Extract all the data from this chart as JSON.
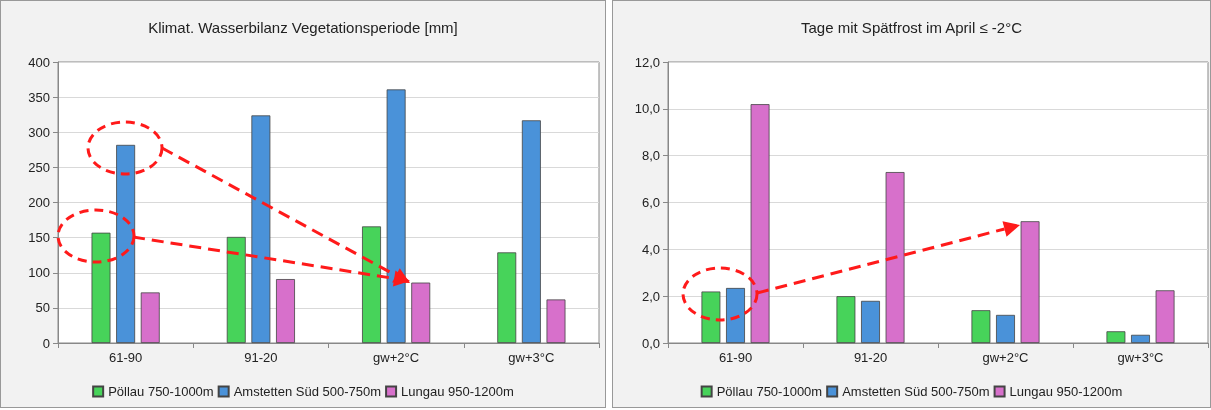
{
  "chart_data": [
    {
      "type": "bar",
      "title": "Klimat. Wasserbilanz Vegetationsperiode [mm]",
      "categories": [
        "61-90",
        "91-20",
        "gw+2°C",
        "gw+3°C"
      ],
      "series": [
        {
          "name": "Pöllau 750-1000m",
          "color": "#47d35a",
          "values": [
            157,
            151,
            166,
            129
          ]
        },
        {
          "name": "Amstetten Süd 500-750m",
          "color": "#4a92d9",
          "values": [
            282,
            324,
            361,
            317
          ]
        },
        {
          "name": "Lungau 950-1200m",
          "color": "#d770cb",
          "values": [
            72,
            91,
            86,
            62
          ]
        }
      ],
      "ylim": [
        0,
        400
      ],
      "yticks": [
        0,
        50,
        100,
        150,
        200,
        250,
        300,
        350,
        400
      ],
      "grid": "y",
      "legend": "bottom"
    },
    {
      "type": "bar",
      "title": "Tage mit Spätfrost im April ≤ -2°C",
      "categories": [
        "61-90",
        "91-20",
        "gw+2°C",
        "gw+3°C"
      ],
      "series": [
        {
          "name": "Pöllau 750-1000m",
          "color": "#47d35a",
          "values": [
            2.2,
            2.0,
            1.4,
            0.5
          ]
        },
        {
          "name": "Amstetten Süd 500-750m",
          "color": "#4a92d9",
          "values": [
            2.35,
            1.8,
            1.2,
            0.35
          ]
        },
        {
          "name": "Lungau 950-1200m",
          "color": "#d770cb",
          "values": [
            10.2,
            7.3,
            5.2,
            2.25
          ]
        }
      ],
      "ylim": [
        0,
        12
      ],
      "yticks": [
        {
          "value": 0,
          "label": "0,0"
        },
        {
          "value": 2,
          "label": "2,0"
        },
        {
          "value": 4,
          "label": "4,0"
        },
        {
          "value": 6,
          "label": "6,0"
        },
        {
          "value": 8,
          "label": "8,0"
        },
        {
          "value": 10,
          "label": "10,0"
        },
        {
          "value": 12,
          "label": "12,0"
        }
      ],
      "grid": "y",
      "legend": "bottom"
    }
  ]
}
